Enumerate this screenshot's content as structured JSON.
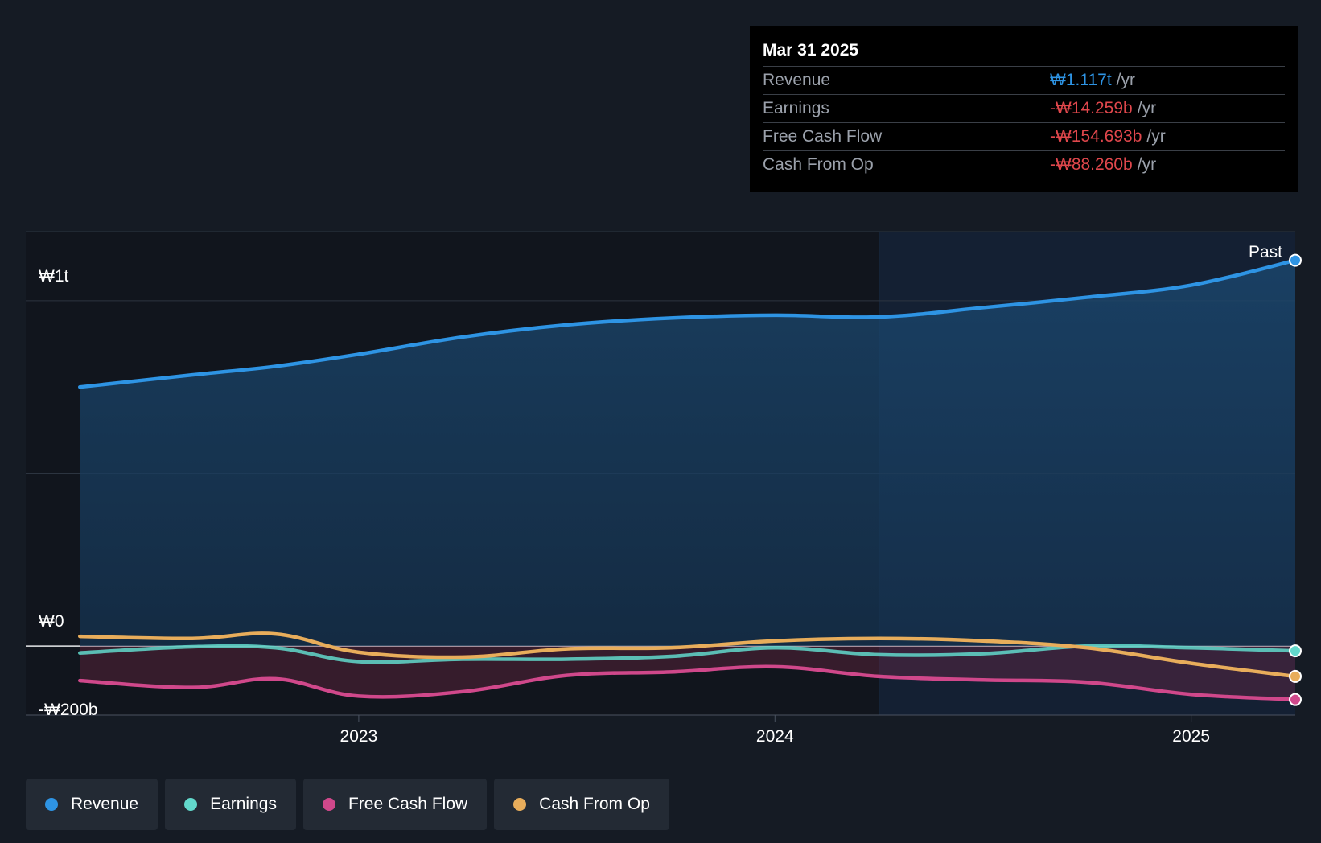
{
  "tooltip": {
    "date": "Mar 31 2025",
    "rows": [
      {
        "label": "Revenue",
        "value": "₩1.117t",
        "unit": "/yr",
        "color": "#2e94e4"
      },
      {
        "label": "Earnings",
        "value": "-₩14.259b",
        "unit": "/yr",
        "color": "#e0474c"
      },
      {
        "label": "Free Cash Flow",
        "value": "-₩154.693b",
        "unit": "/yr",
        "color": "#e0474c"
      },
      {
        "label": "Cash From Op",
        "value": "-₩88.260b",
        "unit": "/yr",
        "color": "#e0474c"
      }
    ]
  },
  "legend": [
    {
      "label": "Revenue",
      "color": "#2e94e4"
    },
    {
      "label": "Earnings",
      "color": "#62d9cc"
    },
    {
      "label": "Free Cash Flow",
      "color": "#d0488b"
    },
    {
      "label": "Cash From Op",
      "color": "#e8ad5b"
    }
  ],
  "chart_data": {
    "type": "line",
    "past_label": "Past",
    "y_tick_labels": [
      {
        "label": "₩1t",
        "value": 1000
      },
      {
        "label": "₩0",
        "value": 0
      },
      {
        "label": "-₩200b",
        "value": -200
      }
    ],
    "x_tick_labels": [
      {
        "label": "2023",
        "value": 2023.0
      },
      {
        "label": "2024",
        "value": 2024.0
      },
      {
        "label": "2025",
        "value": 2025.0
      }
    ],
    "xlim": [
      2022.2,
      2025.25
    ],
    "ylim": [
      -200,
      1200
    ],
    "gridlines": [
      -200,
      500,
      1000,
      1200
    ],
    "past_start": 2024.25,
    "series": [
      {
        "name": "Revenue",
        "color": "#2e94e4",
        "x": [
          2022.33,
          2022.6,
          2022.8,
          2023.0,
          2023.25,
          2023.5,
          2023.75,
          2024.0,
          2024.25,
          2024.5,
          2024.75,
          2025.0,
          2025.25
        ],
        "y": [
          750,
          785,
          810,
          845,
          895,
          930,
          950,
          958,
          953,
          980,
          1010,
          1045,
          1117
        ]
      },
      {
        "name": "Earnings",
        "color": "#62d9cc",
        "x": [
          2022.33,
          2022.6,
          2022.8,
          2023.0,
          2023.25,
          2023.5,
          2023.75,
          2024.0,
          2024.25,
          2024.5,
          2024.75,
          2025.0,
          2025.25
        ],
        "y": [
          -20,
          -2,
          -5,
          -45,
          -38,
          -38,
          -30,
          -5,
          -25,
          -22,
          0,
          -5,
          -14
        ]
      },
      {
        "name": "Free Cash Flow",
        "color": "#d0488b",
        "x": [
          2022.33,
          2022.6,
          2022.8,
          2023.0,
          2023.25,
          2023.5,
          2023.75,
          2024.0,
          2024.25,
          2024.5,
          2024.75,
          2025.0,
          2025.25
        ],
        "y": [
          -100,
          -120,
          -95,
          -145,
          -132,
          -85,
          -75,
          -60,
          -88,
          -98,
          -105,
          -140,
          -155
        ]
      },
      {
        "name": "Cash From Op",
        "color": "#e8ad5b",
        "x": [
          2022.33,
          2022.6,
          2022.8,
          2023.0,
          2023.25,
          2023.5,
          2023.75,
          2024.0,
          2024.25,
          2024.5,
          2024.75,
          2025.0,
          2025.25
        ],
        "y": [
          28,
          22,
          35,
          -18,
          -32,
          -8,
          -5,
          15,
          22,
          15,
          -5,
          -50,
          -88
        ]
      }
    ]
  }
}
